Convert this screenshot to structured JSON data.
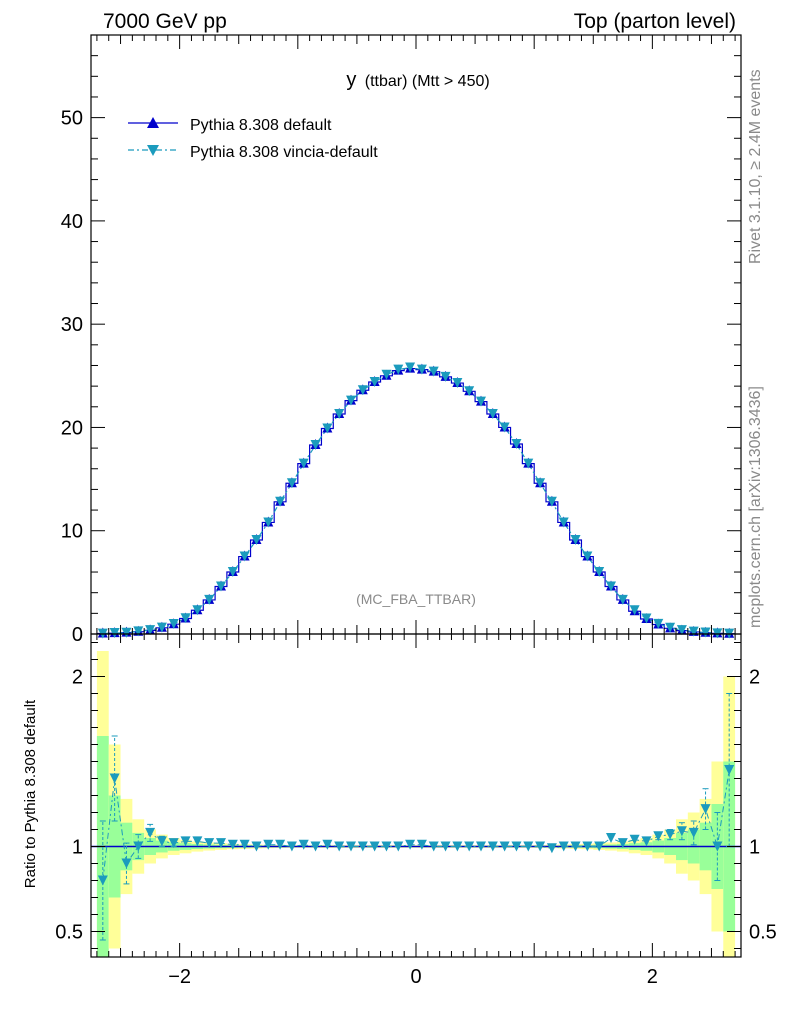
{
  "header": {
    "left": "7000 GeV pp",
    "right": "Top (parton level)"
  },
  "side_text": {
    "rivet": "Rivet 3.1.10, ≥ 2.4M events",
    "mcplots": "mcplots.cern.ch [arXiv:1306.3436]"
  },
  "chart_data": {
    "type": "line",
    "title": "y (ttbar) (Mtt > 450)",
    "title_main": "y",
    "title_sub": "(ttbar) (Mtt > 450)",
    "analysis_label": "(MC_FBA_TTBAR)",
    "ylabel_ratio": "Ratio to Pythia 8.308 default",
    "xlim": [
      -2.75,
      2.75
    ],
    "ylim_main": [
      0,
      58
    ],
    "ylim_ratio": [
      0.35,
      2.25
    ],
    "x_ticks": [
      -2,
      0,
      2
    ],
    "x_tick_labels": [
      "−2",
      "0",
      "2"
    ],
    "y_ticks_main": [
      0,
      10,
      20,
      30,
      40,
      50
    ],
    "y_tick_labels_main": [
      "0",
      "10",
      "20",
      "30",
      "40",
      "50"
    ],
    "y_ticks_ratio": [
      0.5,
      1,
      2
    ],
    "y_tick_labels_ratio": [
      "0.5",
      "1",
      "2"
    ],
    "legend_position": "top-left",
    "colors": {
      "default": "#0000cc",
      "vincia": "#1b9bbd",
      "band_inner": "#99ff99",
      "band_outer": "#ffff99"
    },
    "x": [
      -2.65,
      -2.55,
      -2.45,
      -2.35,
      -2.25,
      -2.15,
      -2.05,
      -1.95,
      -1.85,
      -1.75,
      -1.65,
      -1.55,
      -1.45,
      -1.35,
      -1.25,
      -1.15,
      -1.05,
      -0.95,
      -0.85,
      -0.75,
      -0.65,
      -0.55,
      -0.45,
      -0.35,
      -0.25,
      -0.15,
      -0.05,
      0.05,
      0.15,
      0.25,
      0.35,
      0.45,
      0.55,
      0.65,
      0.75,
      0.85,
      0.95,
      1.05,
      1.15,
      1.25,
      1.35,
      1.45,
      1.55,
      1.65,
      1.75,
      1.85,
      1.95,
      2.05,
      2.15,
      2.25,
      2.35,
      2.45,
      2.55,
      2.65
    ],
    "series": [
      {
        "name": "Pythia 8.308 default",
        "values": [
          0.05,
          0.08,
          0.13,
          0.22,
          0.35,
          0.6,
          0.95,
          1.5,
          2.3,
          3.3,
          4.6,
          6.0,
          7.5,
          9.1,
          10.8,
          12.8,
          14.6,
          16.5,
          18.3,
          19.9,
          21.3,
          22.6,
          23.6,
          24.4,
          25.0,
          25.5,
          25.7,
          25.6,
          25.4,
          24.9,
          24.3,
          23.5,
          22.5,
          21.3,
          20.0,
          18.4,
          16.5,
          14.6,
          12.8,
          10.8,
          9.1,
          7.5,
          6.0,
          4.6,
          3.3,
          2.2,
          1.45,
          0.92,
          0.55,
          0.33,
          0.2,
          0.12,
          0.06,
          0.03
        ]
      },
      {
        "name": "Pythia 8.308 vincia-default",
        "values": [
          0.04,
          0.1,
          0.12,
          0.25,
          0.38,
          0.62,
          0.97,
          1.52,
          2.3,
          3.3,
          4.6,
          6.0,
          7.5,
          9.1,
          10.8,
          12.8,
          14.6,
          16.5,
          18.3,
          19.9,
          21.3,
          22.6,
          23.6,
          24.4,
          25.1,
          25.6,
          25.8,
          25.6,
          25.4,
          24.9,
          24.3,
          23.5,
          22.5,
          21.3,
          20.0,
          18.4,
          16.5,
          14.6,
          12.8,
          10.8,
          9.1,
          7.5,
          6.0,
          4.6,
          3.3,
          2.3,
          1.5,
          0.98,
          0.6,
          0.37,
          0.23,
          0.14,
          0.06,
          0.04
        ]
      }
    ],
    "ratio_vincia": [
      0.8,
      1.4,
      0.9,
      1.0,
      1.08,
      1.03,
      1.02,
      1.03,
      1.03,
      1.02,
      1.02,
      1.01,
      1.01,
      1.0,
      1.01,
      1.01,
      1.0,
      1.01,
      1.0,
      1.01,
      1.0,
      1.0,
      1.0,
      1.0,
      1.0,
      1.0,
      1.01,
      1.01,
      1.0,
      1.0,
      1.0,
      1.0,
      1.0,
      1.0,
      1.0,
      1.0,
      1.0,
      1.0,
      0.99,
      1.0,
      1.0,
      1.0,
      1.0,
      1.05,
      1.02,
      1.04,
      1.03,
      1.06,
      1.07,
      1.09,
      1.08,
      1.22,
      1.0,
      1.45
    ],
    "ratio_err": [
      0.35,
      0.25,
      0.12,
      0.07,
      0.05,
      0.03,
      0.02,
      0.015,
      0.01,
      0.01,
      0.01,
      0.005,
      0.005,
      0.005,
      0.005,
      0.005,
      0.005,
      0.005,
      0.005,
      0.005,
      0.005,
      0.005,
      0.005,
      0.005,
      0.005,
      0.005,
      0.005,
      0.005,
      0.005,
      0.005,
      0.005,
      0.005,
      0.005,
      0.005,
      0.005,
      0.005,
      0.005,
      0.005,
      0.005,
      0.005,
      0.005,
      0.005,
      0.005,
      0.01,
      0.01,
      0.01,
      0.015,
      0.02,
      0.03,
      0.05,
      0.07,
      0.12,
      0.2,
      0.45
    ],
    "band_inner": [
      0.65,
      0.3,
      0.14,
      0.08,
      0.05,
      0.035,
      0.025,
      0.02,
      0.015,
      0.012,
      0.01,
      0.008,
      0.007,
      0.006,
      0.005,
      0.005,
      0.004,
      0.004,
      0.004,
      0.004,
      0.004,
      0.004,
      0.004,
      0.004,
      0.004,
      0.004,
      0.004,
      0.004,
      0.004,
      0.004,
      0.004,
      0.004,
      0.004,
      0.004,
      0.004,
      0.004,
      0.004,
      0.005,
      0.005,
      0.006,
      0.007,
      0.008,
      0.01,
      0.012,
      0.015,
      0.02,
      0.025,
      0.035,
      0.05,
      0.08,
      0.1,
      0.14,
      0.25,
      0.5
    ],
    "band_outer": [
      1.15,
      0.6,
      0.28,
      0.16,
      0.1,
      0.07,
      0.05,
      0.04,
      0.03,
      0.024,
      0.02,
      0.016,
      0.014,
      0.012,
      0.01,
      0.009,
      0.008,
      0.008,
      0.008,
      0.008,
      0.008,
      0.008,
      0.008,
      0.008,
      0.008,
      0.008,
      0.008,
      0.008,
      0.008,
      0.008,
      0.008,
      0.008,
      0.008,
      0.008,
      0.008,
      0.008,
      0.008,
      0.009,
      0.01,
      0.012,
      0.014,
      0.016,
      0.02,
      0.024,
      0.03,
      0.04,
      0.05,
      0.07,
      0.1,
      0.16,
      0.2,
      0.28,
      0.5,
      1.0
    ]
  }
}
